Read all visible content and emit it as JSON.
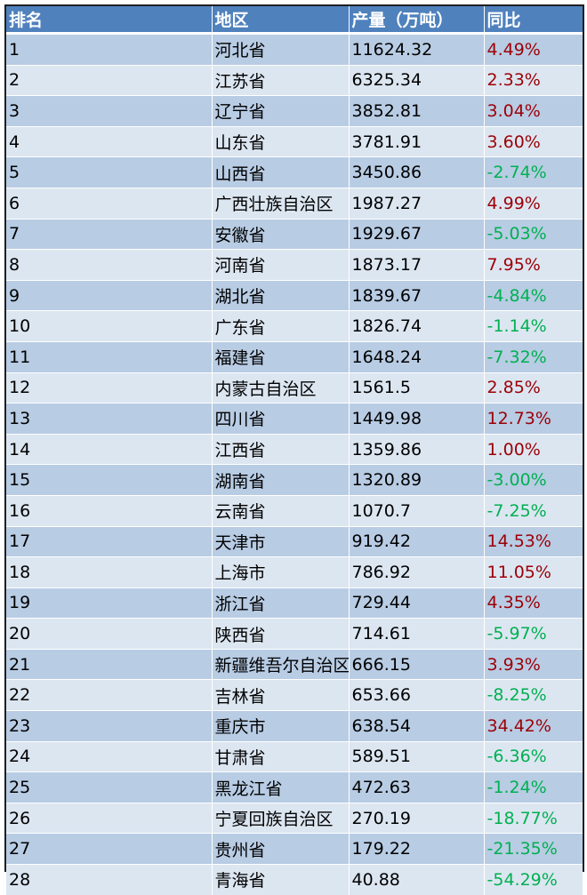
{
  "headers": [
    "排名",
    "地区",
    "产量（万吨）",
    "同比"
  ],
  "rows": [
    {
      "rank": "1",
      "region": "河北省",
      "output": "11624.32",
      "yoy": "4.49%"
    },
    {
      "rank": "2",
      "region": "江苏省",
      "output": "6325.34",
      "yoy": "2.33%"
    },
    {
      "rank": "3",
      "region": "辽宁省",
      "output": "3852.81",
      "yoy": "3.04%"
    },
    {
      "rank": "4",
      "region": "山东省",
      "output": "3781.91",
      "yoy": "3.60%"
    },
    {
      "rank": "5",
      "region": "山西省",
      "output": "3450.86",
      "yoy": "-2.74%"
    },
    {
      "rank": "6",
      "region": "广西壮族自治区",
      "output": "1987.27",
      "yoy": "4.99%"
    },
    {
      "rank": "7",
      "region": "安徽省",
      "output": "1929.67",
      "yoy": "-5.03%"
    },
    {
      "rank": "8",
      "region": "河南省",
      "output": "1873.17",
      "yoy": "7.95%"
    },
    {
      "rank": "9",
      "region": "湖北省",
      "output": "1839.67",
      "yoy": "-4.84%"
    },
    {
      "rank": "10",
      "region": "广东省",
      "output": "1826.74",
      "yoy": "-1.14%"
    },
    {
      "rank": "11",
      "region": "福建省",
      "output": "1648.24",
      "yoy": "-7.32%"
    },
    {
      "rank": "12",
      "region": "内蒙古自治区",
      "output": "1561.5",
      "yoy": "2.85%"
    },
    {
      "rank": "13",
      "region": "四川省",
      "output": "1449.98",
      "yoy": "12.73%"
    },
    {
      "rank": "14",
      "region": "江西省",
      "output": "1359.86",
      "yoy": "1.00%"
    },
    {
      "rank": "15",
      "region": "湖南省",
      "output": "1320.89",
      "yoy": "-3.00%"
    },
    {
      "rank": "16",
      "region": "云南省",
      "output": "1070.7",
      "yoy": "-7.25%"
    },
    {
      "rank": "17",
      "region": "天津市",
      "output": "919.42",
      "yoy": "14.53%"
    },
    {
      "rank": "18",
      "region": "上海市",
      "output": "786.92",
      "yoy": "11.05%"
    },
    {
      "rank": "19",
      "region": "浙江省",
      "output": "729.44",
      "yoy": "4.35%"
    },
    {
      "rank": "20",
      "region": "陕西省",
      "output": "714.61",
      "yoy": "-5.97%"
    },
    {
      "rank": "21",
      "region": "新疆维吾尔自治区",
      "output": "666.15",
      "yoy": "3.93%"
    },
    {
      "rank": "22",
      "region": "吉林省",
      "output": "653.66",
      "yoy": "-8.25%"
    },
    {
      "rank": "23",
      "region": "重庆市",
      "output": "638.54",
      "yoy": "34.42%"
    },
    {
      "rank": "24",
      "region": "甘肃省",
      "output": "589.51",
      "yoy": "-6.36%"
    },
    {
      "rank": "25",
      "region": "黑龙江省",
      "output": "472.63",
      "yoy": "-1.24%"
    },
    {
      "rank": "26",
      "region": "宁夏回族自治区",
      "output": "270.19",
      "yoy": "-18.77%"
    },
    {
      "rank": "27",
      "region": "贵州省",
      "output": "179.22",
      "yoy": "-21.35%"
    },
    {
      "rank": "28",
      "region": "青海省",
      "output": "40.88",
      "yoy": "-54.29%"
    }
  ],
  "colors": {
    "header_bg": "#4f81bd",
    "row_band_dark": "#b8cce4",
    "row_band_light": "#dce6f1",
    "increase": "#9c0006",
    "decrease": "#00b050"
  }
}
